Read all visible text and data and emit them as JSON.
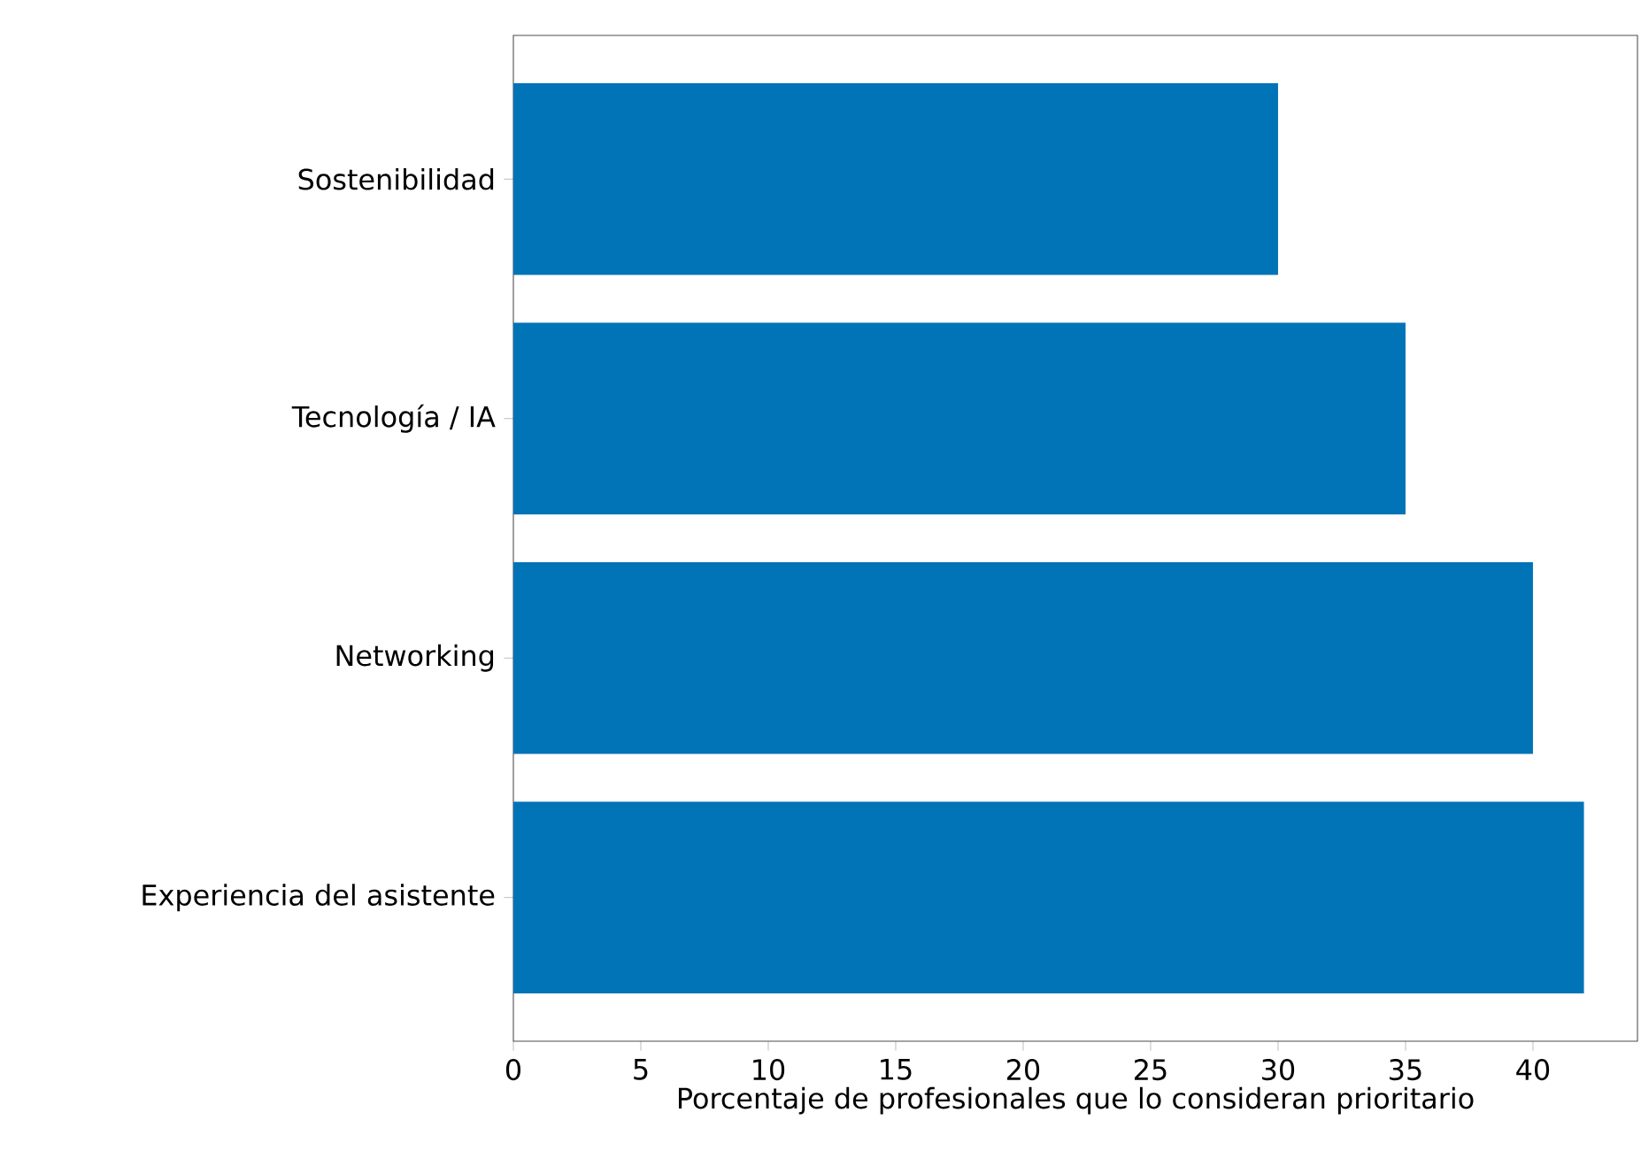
{
  "chart_data": {
    "type": "bar",
    "orientation": "horizontal",
    "categories": [
      "Sostenibilidad",
      "Tecnología / IA",
      "Networking",
      "Experiencia del asistente"
    ],
    "values": [
      30,
      35,
      40,
      42
    ],
    "color": "#0173b7",
    "xlabel": "Porcentaje de profesionales que lo consideran prioritario",
    "xlim": [
      0,
      44.1
    ],
    "xticks": [
      0,
      5,
      10,
      15,
      20,
      25,
      30,
      35,
      40
    ]
  }
}
